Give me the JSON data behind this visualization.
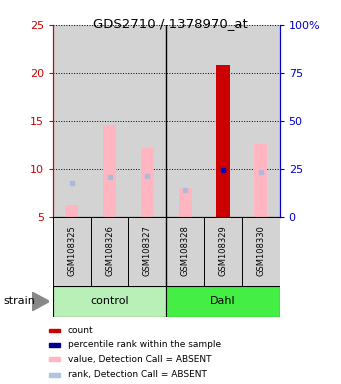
{
  "title": "GDS2710 / 1378970_at",
  "samples": [
    "GSM108325",
    "GSM108326",
    "GSM108327",
    "GSM108328",
    "GSM108329",
    "GSM108330"
  ],
  "groups": [
    "control",
    "control",
    "control",
    "Dahl",
    "Dahl",
    "Dahl"
  ],
  "group_labels": [
    "control",
    "Dahl"
  ],
  "group_colors_ctrl": "#b8f0b8",
  "group_colors_dahl": "#44ee44",
  "pink_bar_tops": [
    6.2,
    14.6,
    12.2,
    8.0,
    20.8,
    12.6
  ],
  "pink_bar_bottoms": [
    5.0,
    5.0,
    5.0,
    5.0,
    5.0,
    5.0
  ],
  "red_bar": [
    false,
    false,
    false,
    false,
    true,
    false
  ],
  "blue_squares_y": [
    8.5,
    9.2,
    9.3,
    7.8,
    9.9,
    9.7
  ],
  "blue_squares_present": [
    false,
    false,
    false,
    false,
    true,
    false
  ],
  "ylim_left": [
    5,
    25
  ],
  "ylim_right": [
    0,
    100
  ],
  "yticks_left": [
    5,
    10,
    15,
    20,
    25
  ],
  "yticks_right": [
    0,
    25,
    50,
    75,
    100
  ],
  "ytick_labels_right": [
    "0",
    "25",
    "50",
    "75",
    "100%"
  ],
  "left_axis_color": "#cc0000",
  "right_axis_color": "#0000cc",
  "bar_width": 0.35,
  "legend_items": [
    {
      "label": "count",
      "color": "#cc0000"
    },
    {
      "label": "percentile rank within the sample",
      "color": "#00008b"
    },
    {
      "label": "value, Detection Call = ABSENT",
      "color": "#ffb6c1"
    },
    {
      "label": "rank, Detection Call = ABSENT",
      "color": "#b0c4de"
    }
  ]
}
